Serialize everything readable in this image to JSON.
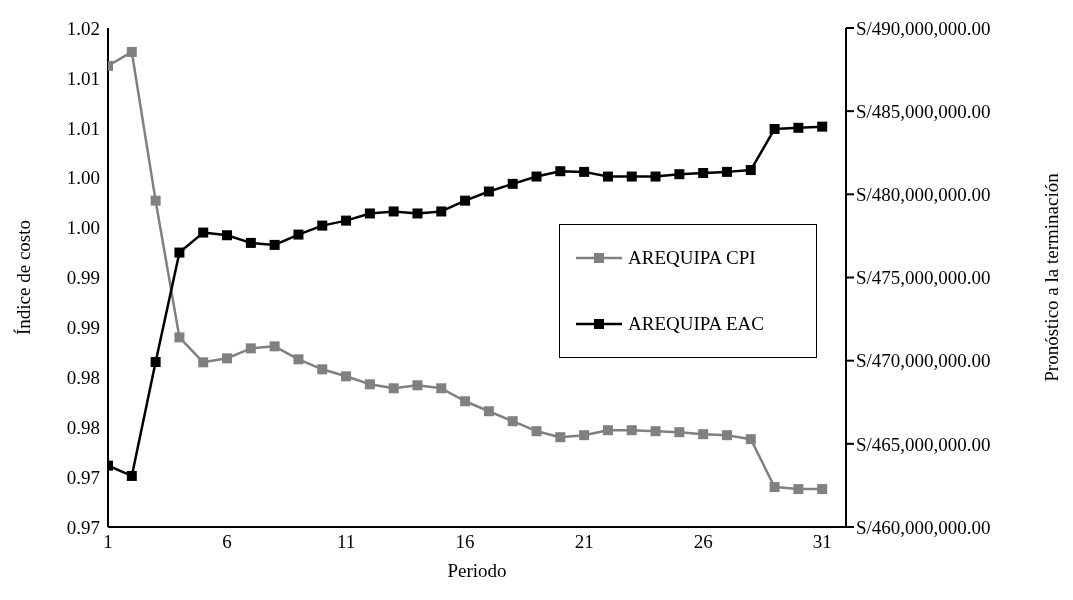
{
  "chart_data": {
    "type": "line",
    "xlabel": "Periodo",
    "ylabel": "Índice de costo",
    "y2label": "Pronóstico a la terminación",
    "x": [
      1,
      2,
      3,
      4,
      5,
      6,
      7,
      8,
      9,
      10,
      11,
      12,
      13,
      14,
      15,
      16,
      17,
      18,
      19,
      20,
      21,
      22,
      23,
      24,
      25,
      26,
      27,
      28,
      29,
      30,
      31
    ],
    "xlim": [
      1,
      32
    ],
    "xticks": [
      1,
      6,
      11,
      16,
      21,
      26,
      31
    ],
    "ylim": [
      0.97,
      1.02
    ],
    "yticks": [
      {
        "value": 0.97,
        "label": "0.97"
      },
      {
        "value": 0.975,
        "label": "0.97"
      },
      {
        "value": 0.98,
        "label": "0.98"
      },
      {
        "value": 0.985,
        "label": "0.98"
      },
      {
        "value": 0.99,
        "label": "0.99"
      },
      {
        "value": 0.995,
        "label": "0.99"
      },
      {
        "value": 1.0,
        "label": "1.00"
      },
      {
        "value": 1.005,
        "label": "1.00"
      },
      {
        "value": 1.01,
        "label": "1.01"
      },
      {
        "value": 1.015,
        "label": "1.01"
      },
      {
        "value": 1.02,
        "label": "1.02"
      }
    ],
    "y2lim": [
      460000000,
      490000000
    ],
    "y2ticks": [
      {
        "value": 460000000,
        "label": "S/460,000,000.00"
      },
      {
        "value": 465000000,
        "label": "S/465,000,000.00"
      },
      {
        "value": 470000000,
        "label": "S/470,000,000.00"
      },
      {
        "value": 475000000,
        "label": "S/475,000,000.00"
      },
      {
        "value": 480000000,
        "label": "S/480,000,000.00"
      },
      {
        "value": 485000000,
        "label": "S/485,000,000.00"
      },
      {
        "value": 490000000,
        "label": "S/490,000,000.00"
      }
    ],
    "series": [
      {
        "name": "AREQUIPA CPI",
        "color": "#808080",
        "values": [
          1.0162,
          1.0176,
          1.0027,
          0.989,
          0.9865,
          0.9869,
          0.9879,
          0.9881,
          0.9868,
          0.9858,
          0.9851,
          0.9843,
          0.9839,
          0.9842,
          0.9839,
          0.9826,
          0.9816,
          0.9806,
          0.9796,
          0.979,
          0.9792,
          0.9797,
          0.9797,
          0.9796,
          0.9795,
          0.9793,
          0.9792,
          0.9788,
          0.974,
          0.9738,
          0.9738
        ]
      },
      {
        "name": "AREQUIPA EAC",
        "color": "#000000",
        "axis": "y2",
        "values": [
          463690000,
          463070000,
          469920000,
          476500000,
          477700000,
          477540000,
          477080000,
          476960000,
          477580000,
          478120000,
          478420000,
          478850000,
          478970000,
          478850000,
          478970000,
          479620000,
          480170000,
          480630000,
          481070000,
          481390000,
          481350000,
          481070000,
          481070000,
          481070000,
          481210000,
          481280000,
          481350000,
          481460000,
          483930000,
          484000000,
          484070000
        ]
      }
    ],
    "legend": "right",
    "grid": false,
    "marker": "square",
    "line_style": "solid"
  }
}
